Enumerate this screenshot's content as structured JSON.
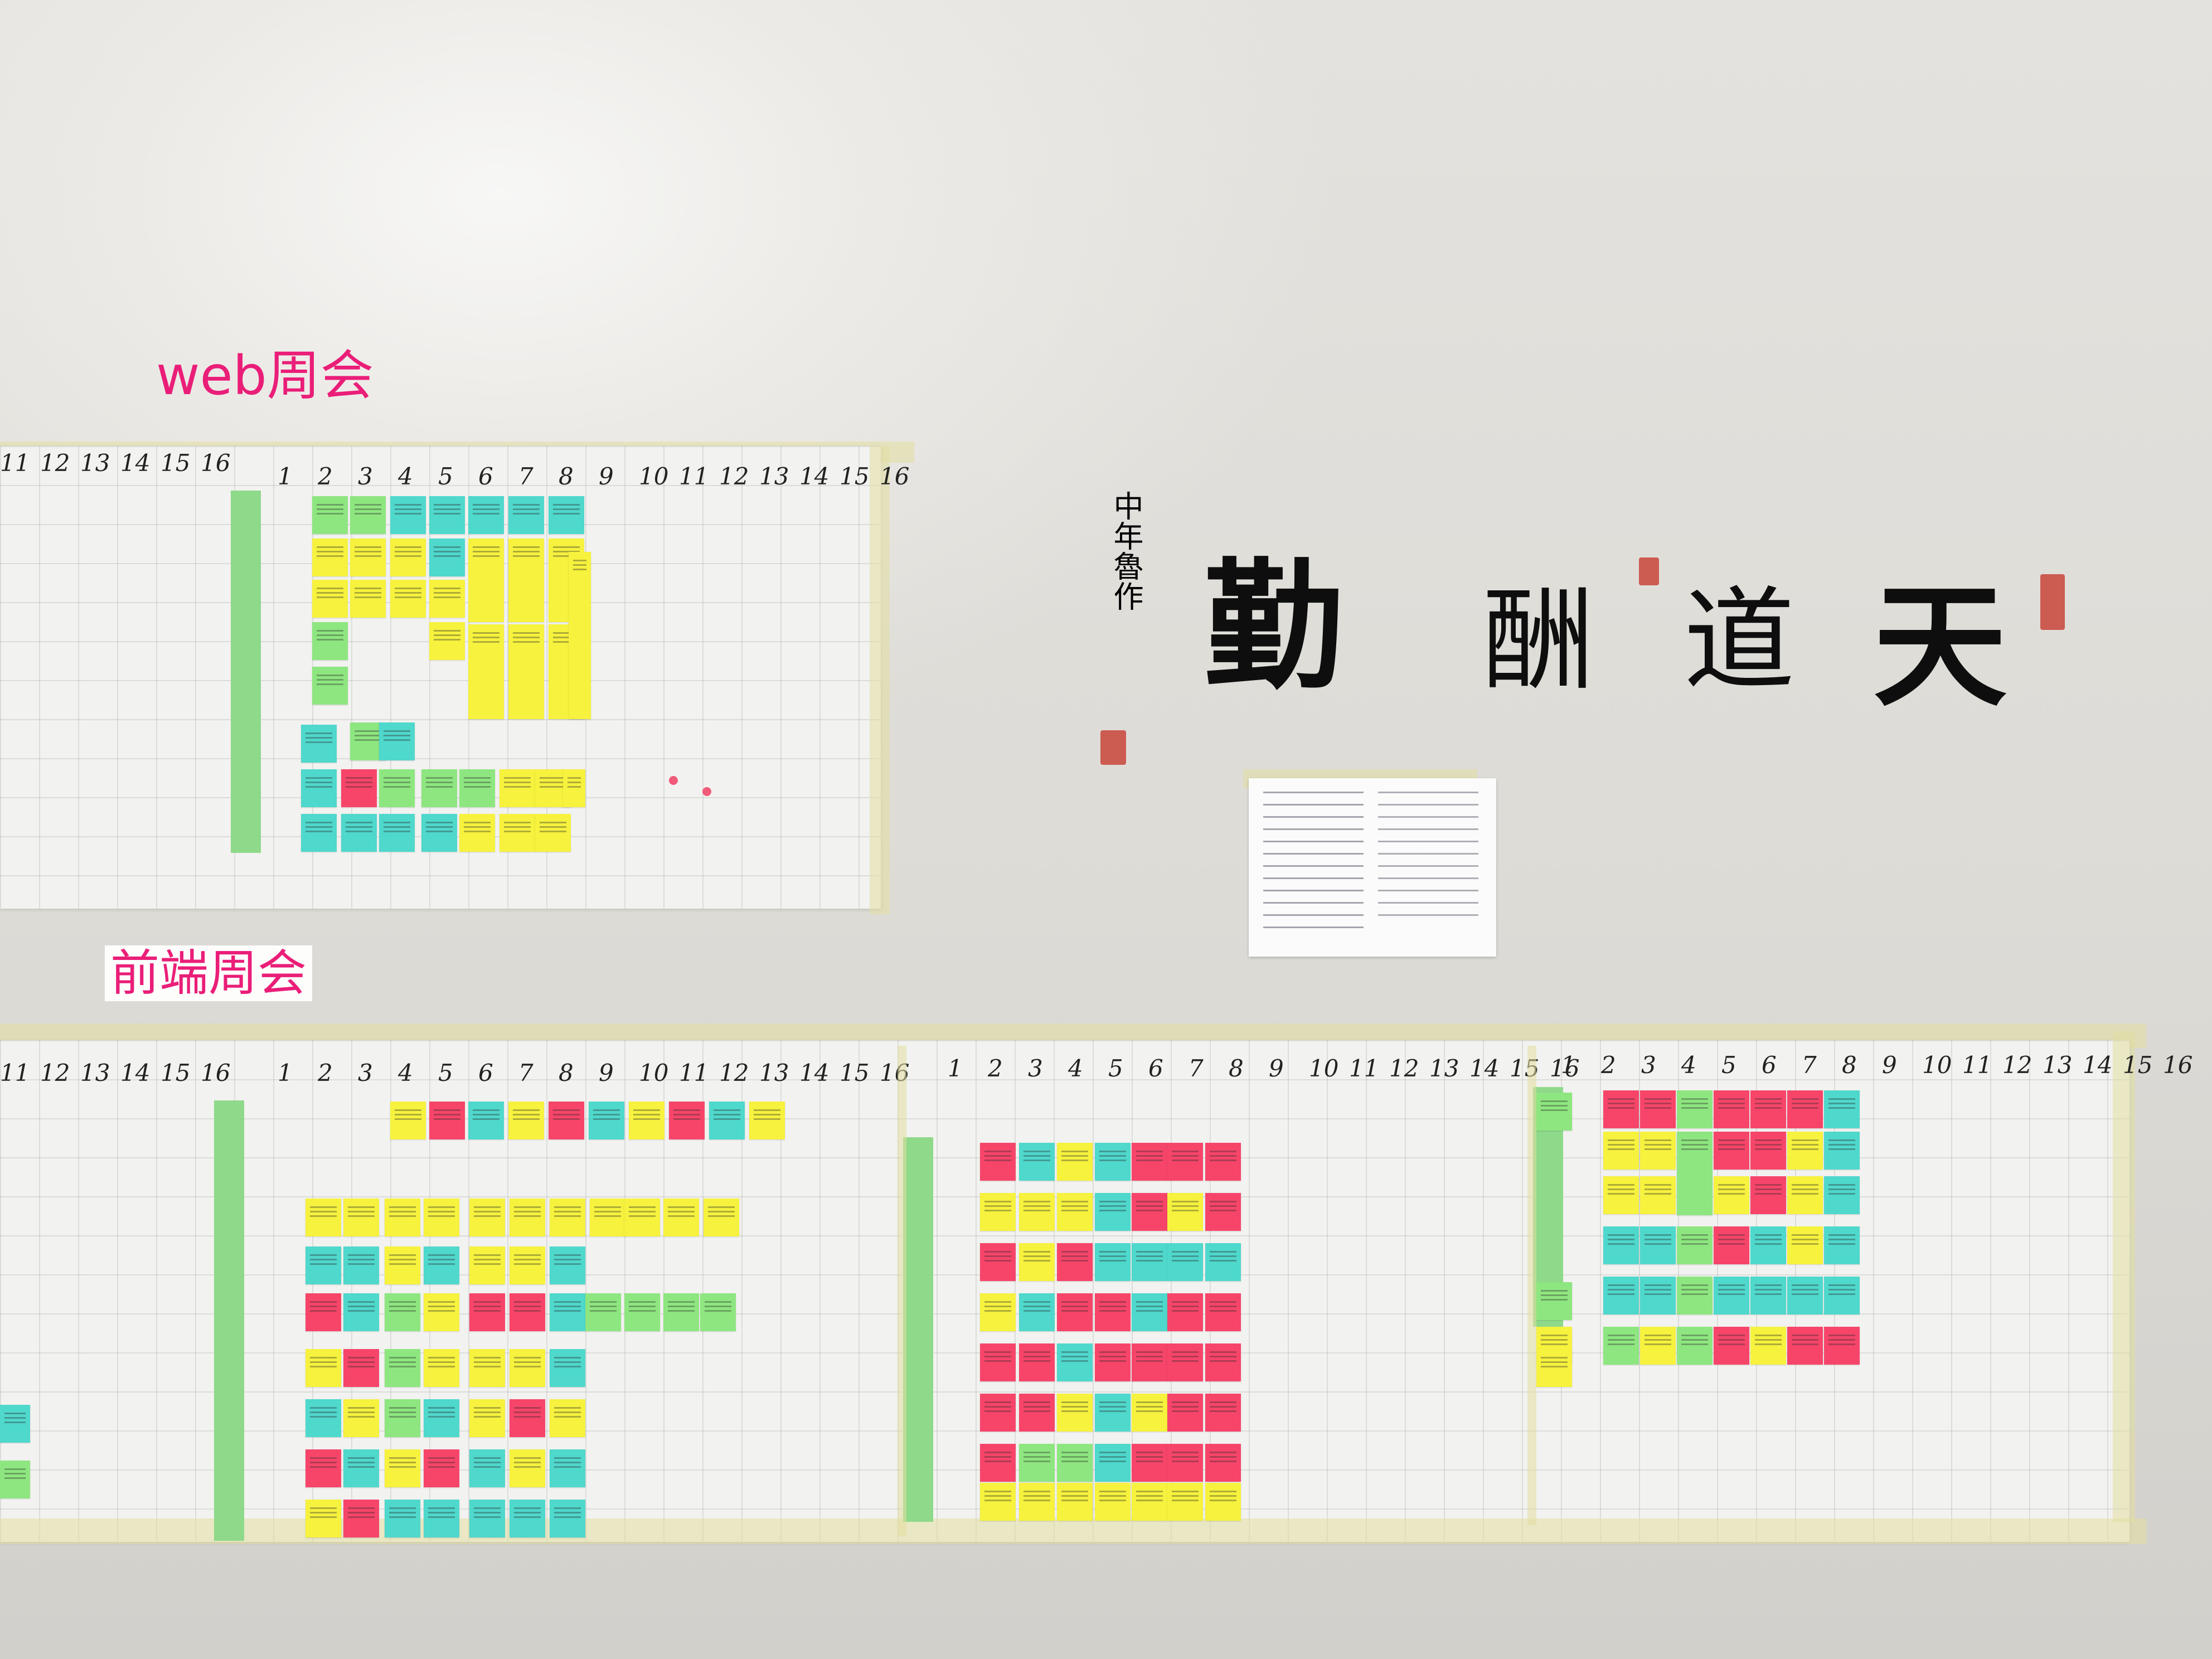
{
  "labels": {
    "web_meeting": "web周会",
    "frontend_meeting": "前端周会"
  },
  "calligraphy": {
    "main_text": [
      "勤",
      "酬",
      "道",
      "天"
    ],
    "signature": "中年魯作"
  },
  "week_numbers": [
    "1",
    "2",
    "3",
    "4",
    "5",
    "6",
    "7",
    "8",
    "9",
    "10",
    "11",
    "12",
    "13",
    "14",
    "15",
    "16"
  ],
  "week_numbers_partial": [
    "11",
    "12",
    "13",
    "14",
    "15",
    "16"
  ],
  "colors": {
    "label_pink": "#ea1e78",
    "sticky_yellow": "#f6f23e",
    "sticky_pink": "#f7456a",
    "sticky_cyan": "#4fd8cc",
    "sticky_green": "#8ee680",
    "seal_red": "#c9443a"
  }
}
